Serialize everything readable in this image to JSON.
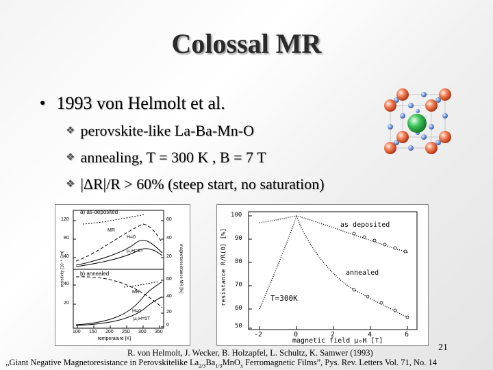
{
  "slide": {
    "title": "Colossal MR",
    "bullet": "1993 von Helmolt et al.",
    "sub_bullets": [
      "perovskite-like La-Ba-Mn-O",
      "annealing, T = 300 K , B = 7 T",
      "|ΔR|/R > 60% (steep start, no saturation)"
    ],
    "page_number": "21"
  },
  "figure_left": {
    "top_ylabel_left": "resistivity [10⁻⁶ Ωm]",
    "top_ylabel_right": "magnetoresistance MR [%]",
    "panel_a": "a) as-deposited",
    "panel_b": "b) annealed",
    "labels_a": [
      "MR",
      "H=0",
      "μ₀H=5T"
    ],
    "labels_b": [
      "MR",
      "H=0",
      "μ₀H=5T"
    ],
    "yticks_left_a": [
      "120",
      "80",
      "40"
    ],
    "yticks_right_a": [
      "60",
      "40",
      "20"
    ],
    "yticks_left_b": [
      "40",
      "20"
    ],
    "yticks_right_b": [
      "60",
      "40",
      "20",
      "0"
    ],
    "xticks": [
      "100",
      "150",
      "200",
      "250",
      "300",
      "350"
    ],
    "xlabel": "temperature [K]"
  },
  "figure_right": {
    "ylabel": "resistance R/R(0) [%]",
    "xlabel": "magnetic field μ₀H [T]",
    "yticks": [
      "100",
      "90",
      "80",
      "70",
      "60",
      "50"
    ],
    "xticks": [
      "-2",
      "0",
      "2",
      "4",
      "6"
    ],
    "label_deposited": "as deposited",
    "label_annealed": "annealed",
    "label_temp": "T=300K"
  },
  "citation": {
    "line1": "R. von Helmolt, J. Wecker, B. Holzapfel, L. Schultz, K. Samwer (1993)",
    "line2_pre": "„Giant Negative Magnetoresistance in Perovskitelike La",
    "sub1": "2/3",
    "mid1": "Ba",
    "sub2": "1/3",
    "mid2": "MnO",
    "sub3": "x",
    "line2_post": " Ferromagnetic Films”, Pys. Rev. Letters Vol. 71, No. 14"
  }
}
